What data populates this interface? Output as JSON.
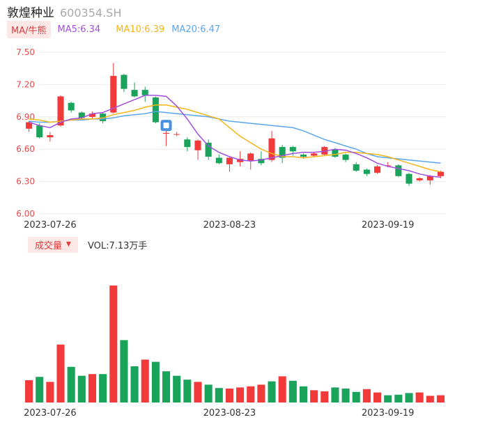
{
  "header": {
    "title": "敦煌种业",
    "code": "600354.SH"
  },
  "ma_bar": {
    "button_label": "MA/牛熊",
    "ma5": "MA5:6.34",
    "ma10": "MA10:6.39",
    "ma20": "MA20:6.47"
  },
  "volume_bar": {
    "button_label": "成交量",
    "vol_text": "VOL:7.13万手"
  },
  "colors": {
    "up": "#f23a3a",
    "down": "#1aa35a",
    "ma5": "#a24fe0",
    "ma10": "#f2b619",
    "ma20": "#5aa6ee",
    "axis_text": "#3fa86b"
  },
  "chart_data": [
    {
      "type": "candlestick",
      "y_ticks": [
        "7.50",
        "7.20",
        "6.90",
        "6.60",
        "6.30",
        "6.00"
      ],
      "ylim": [
        6.0,
        7.5
      ],
      "x_tick_labels": [
        {
          "label": "2023-07-26",
          "index": 2
        },
        {
          "label": "2023-08-23",
          "index": 19
        },
        {
          "label": "2023-09-19",
          "index": 34
        }
      ],
      "candles": [
        {
          "o": 6.79,
          "c": 6.85,
          "h": 6.86,
          "l": 6.76
        },
        {
          "o": 6.82,
          "c": 6.71,
          "h": 6.84,
          "l": 6.7
        },
        {
          "o": 6.71,
          "c": 6.73,
          "h": 6.76,
          "l": 6.67
        },
        {
          "o": 6.82,
          "c": 7.09,
          "h": 7.1,
          "l": 6.81
        },
        {
          "o": 7.03,
          "c": 6.96,
          "h": 7.04,
          "l": 6.94
        },
        {
          "o": 6.94,
          "c": 6.89,
          "h": 6.95,
          "l": 6.88
        },
        {
          "o": 6.9,
          "c": 6.93,
          "h": 6.95,
          "l": 6.88
        },
        {
          "o": 6.93,
          "c": 6.86,
          "h": 6.94,
          "l": 6.84
        },
        {
          "o": 6.94,
          "c": 7.28,
          "h": 7.4,
          "l": 6.93
        },
        {
          "o": 7.29,
          "c": 7.16,
          "h": 7.3,
          "l": 7.13
        },
        {
          "o": 7.15,
          "c": 7.09,
          "h": 7.22,
          "l": 7.08
        },
        {
          "o": 7.15,
          "c": 7.1,
          "h": 7.18,
          "l": 7.04
        },
        {
          "o": 7.08,
          "c": 6.85,
          "h": 7.09,
          "l": 6.84
        },
        {
          "o": 6.75,
          "c": 6.75,
          "h": 6.81,
          "l": 6.63
        },
        {
          "o": 6.74,
          "c": 6.74,
          "h": 6.76,
          "l": 6.72
        },
        {
          "o": 6.69,
          "c": 6.62,
          "h": 6.71,
          "l": 6.58
        },
        {
          "o": 6.59,
          "c": 6.68,
          "h": 6.69,
          "l": 6.5
        },
        {
          "o": 6.66,
          "c": 6.53,
          "h": 6.69,
          "l": 6.5
        },
        {
          "o": 6.52,
          "c": 6.47,
          "h": 6.55,
          "l": 6.46
        },
        {
          "o": 6.46,
          "c": 6.52,
          "h": 6.53,
          "l": 6.39
        },
        {
          "o": 6.48,
          "c": 6.51,
          "h": 6.58,
          "l": 6.44
        },
        {
          "o": 6.49,
          "c": 6.56,
          "h": 6.57,
          "l": 6.41
        },
        {
          "o": 6.51,
          "c": 6.47,
          "h": 6.58,
          "l": 6.45
        },
        {
          "o": 6.5,
          "c": 6.7,
          "h": 6.77,
          "l": 6.48
        },
        {
          "o": 6.62,
          "c": 6.52,
          "h": 6.64,
          "l": 6.47
        },
        {
          "o": 6.62,
          "c": 6.58,
          "h": 6.63,
          "l": 6.54
        },
        {
          "o": 6.55,
          "c": 6.53,
          "h": 6.56,
          "l": 6.51
        },
        {
          "o": 6.54,
          "c": 6.56,
          "h": 6.57,
          "l": 6.53
        },
        {
          "o": 6.55,
          "c": 6.62,
          "h": 6.63,
          "l": 6.54
        },
        {
          "o": 6.6,
          "c": 6.53,
          "h": 6.61,
          "l": 6.52
        },
        {
          "o": 6.55,
          "c": 6.5,
          "h": 6.56,
          "l": 6.48
        },
        {
          "o": 6.46,
          "c": 6.4,
          "h": 6.48,
          "l": 6.39
        },
        {
          "o": 6.41,
          "c": 6.37,
          "h": 6.42,
          "l": 6.35
        },
        {
          "o": 6.38,
          "c": 6.44,
          "h": 6.45,
          "l": 6.37
        },
        {
          "o": 6.45,
          "c": 6.45,
          "h": 6.48,
          "l": 6.43
        },
        {
          "o": 6.45,
          "c": 6.35,
          "h": 6.46,
          "l": 6.34
        },
        {
          "o": 6.37,
          "c": 6.28,
          "h": 6.38,
          "l": 6.26
        },
        {
          "o": 6.31,
          "c": 6.33,
          "h": 6.34,
          "l": 6.3
        },
        {
          "o": 6.31,
          "c": 6.35,
          "h": 6.36,
          "l": 6.27
        },
        {
          "o": 6.35,
          "c": 6.39,
          "h": 6.4,
          "l": 6.33
        }
      ],
      "ma5_values": [
        6.85,
        6.82,
        6.8,
        6.85,
        6.88,
        6.89,
        6.93,
        6.94,
        6.98,
        7.02,
        7.06,
        7.1,
        7.1,
        7.09,
        7.0,
        6.88,
        6.74,
        6.63,
        6.57,
        6.53,
        6.5,
        6.49,
        6.5,
        6.52,
        6.54,
        6.56,
        6.57,
        6.57,
        6.58,
        6.6,
        6.59,
        6.56,
        6.52,
        6.47,
        6.44,
        6.42,
        6.4,
        6.37,
        6.35,
        6.34
      ],
      "ma10_values": [
        6.88,
        6.87,
        6.85,
        6.86,
        6.87,
        6.88,
        6.88,
        6.89,
        6.92,
        6.94,
        6.96,
        6.99,
        7.01,
        7.01,
        6.99,
        6.97,
        6.94,
        6.91,
        6.88,
        6.8,
        6.72,
        6.66,
        6.6,
        6.56,
        6.53,
        6.53,
        6.52,
        6.53,
        6.54,
        6.55,
        6.57,
        6.57,
        6.56,
        6.55,
        6.53,
        6.5,
        6.47,
        6.44,
        6.41,
        6.39
      ],
      "ma20_values": [
        6.86,
        6.85,
        6.85,
        6.86,
        6.87,
        6.87,
        6.88,
        6.88,
        6.89,
        6.91,
        6.92,
        6.93,
        6.95,
        6.94,
        6.93,
        6.92,
        6.91,
        6.9,
        6.88,
        6.86,
        6.85,
        6.84,
        6.83,
        6.82,
        6.81,
        6.8,
        6.77,
        6.73,
        6.69,
        6.66,
        6.63,
        6.6,
        6.56,
        6.53,
        6.52,
        6.51,
        6.5,
        6.49,
        6.48,
        6.47
      ],
      "ma_label": "MA/牛熊"
    },
    {
      "type": "bar",
      "ylabel": "成交量",
      "volumes": [
        4.0,
        4.6,
        3.7,
        10.4,
        6.4,
        4.8,
        5.1,
        5.1,
        21.0,
        11.2,
        6.5,
        7.7,
        7.3,
        5.6,
        4.8,
        4.1,
        3.7,
        3.2,
        2.6,
        2.5,
        2.7,
        2.9,
        3.2,
        3.8,
        4.7,
        3.9,
        2.9,
        2.2,
        2.0,
        2.7,
        2.5,
        1.9,
        2.4,
        1.8,
        1.3,
        1.4,
        1.7,
        1.8,
        1.2,
        1.3
      ],
      "volume_up": [
        true,
        false,
        true,
        true,
        false,
        false,
        true,
        false,
        true,
        false,
        false,
        true,
        false,
        false,
        false,
        false,
        true,
        false,
        false,
        true,
        true,
        true,
        true,
        false,
        true,
        false,
        false,
        true,
        true,
        false,
        false,
        false,
        true,
        true,
        false,
        false,
        false,
        true,
        true,
        true
      ],
      "vol_label": "VOL:7.13万手"
    }
  ]
}
